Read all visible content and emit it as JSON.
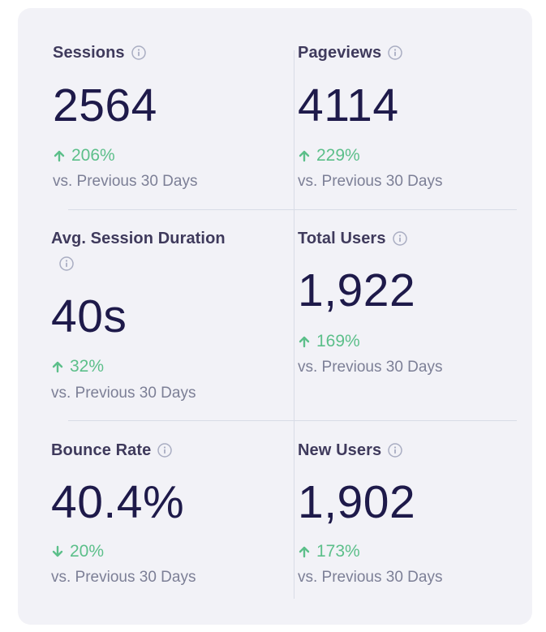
{
  "colors": {
    "card_bg": "#f2f2f7",
    "title": "#3f3a5c",
    "value": "#1e1a4a",
    "positive": "#5cbf8a",
    "muted": "#7c7f96",
    "divider": "#d8dce6"
  },
  "metrics": [
    {
      "title": "Sessions",
      "value": "2564",
      "change": "206%",
      "direction": "up",
      "compare": "vs. Previous 30 Days",
      "icon": "info-icon"
    },
    {
      "title": "Pageviews",
      "value": "4114",
      "change": "229%",
      "direction": "up",
      "compare": "vs. Previous 30 Days",
      "icon": "info-icon"
    },
    {
      "title": "Avg. Session Duration",
      "value": "40s",
      "change": "32%",
      "direction": "up",
      "compare": "vs. Previous 30 Days",
      "icon": "info-icon"
    },
    {
      "title": "Total Users",
      "value": "1,922",
      "change": "169%",
      "direction": "up",
      "compare": "vs. Previous 30 Days",
      "icon": "info-icon"
    },
    {
      "title": "Bounce Rate",
      "value": "40.4%",
      "change": "20%",
      "direction": "down",
      "compare": "vs. Previous 30 Days",
      "icon": "info-icon"
    },
    {
      "title": "New Users",
      "value": "1,902",
      "change": "173%",
      "direction": "up",
      "compare": "vs. Previous 30 Days",
      "icon": "info-icon"
    }
  ]
}
